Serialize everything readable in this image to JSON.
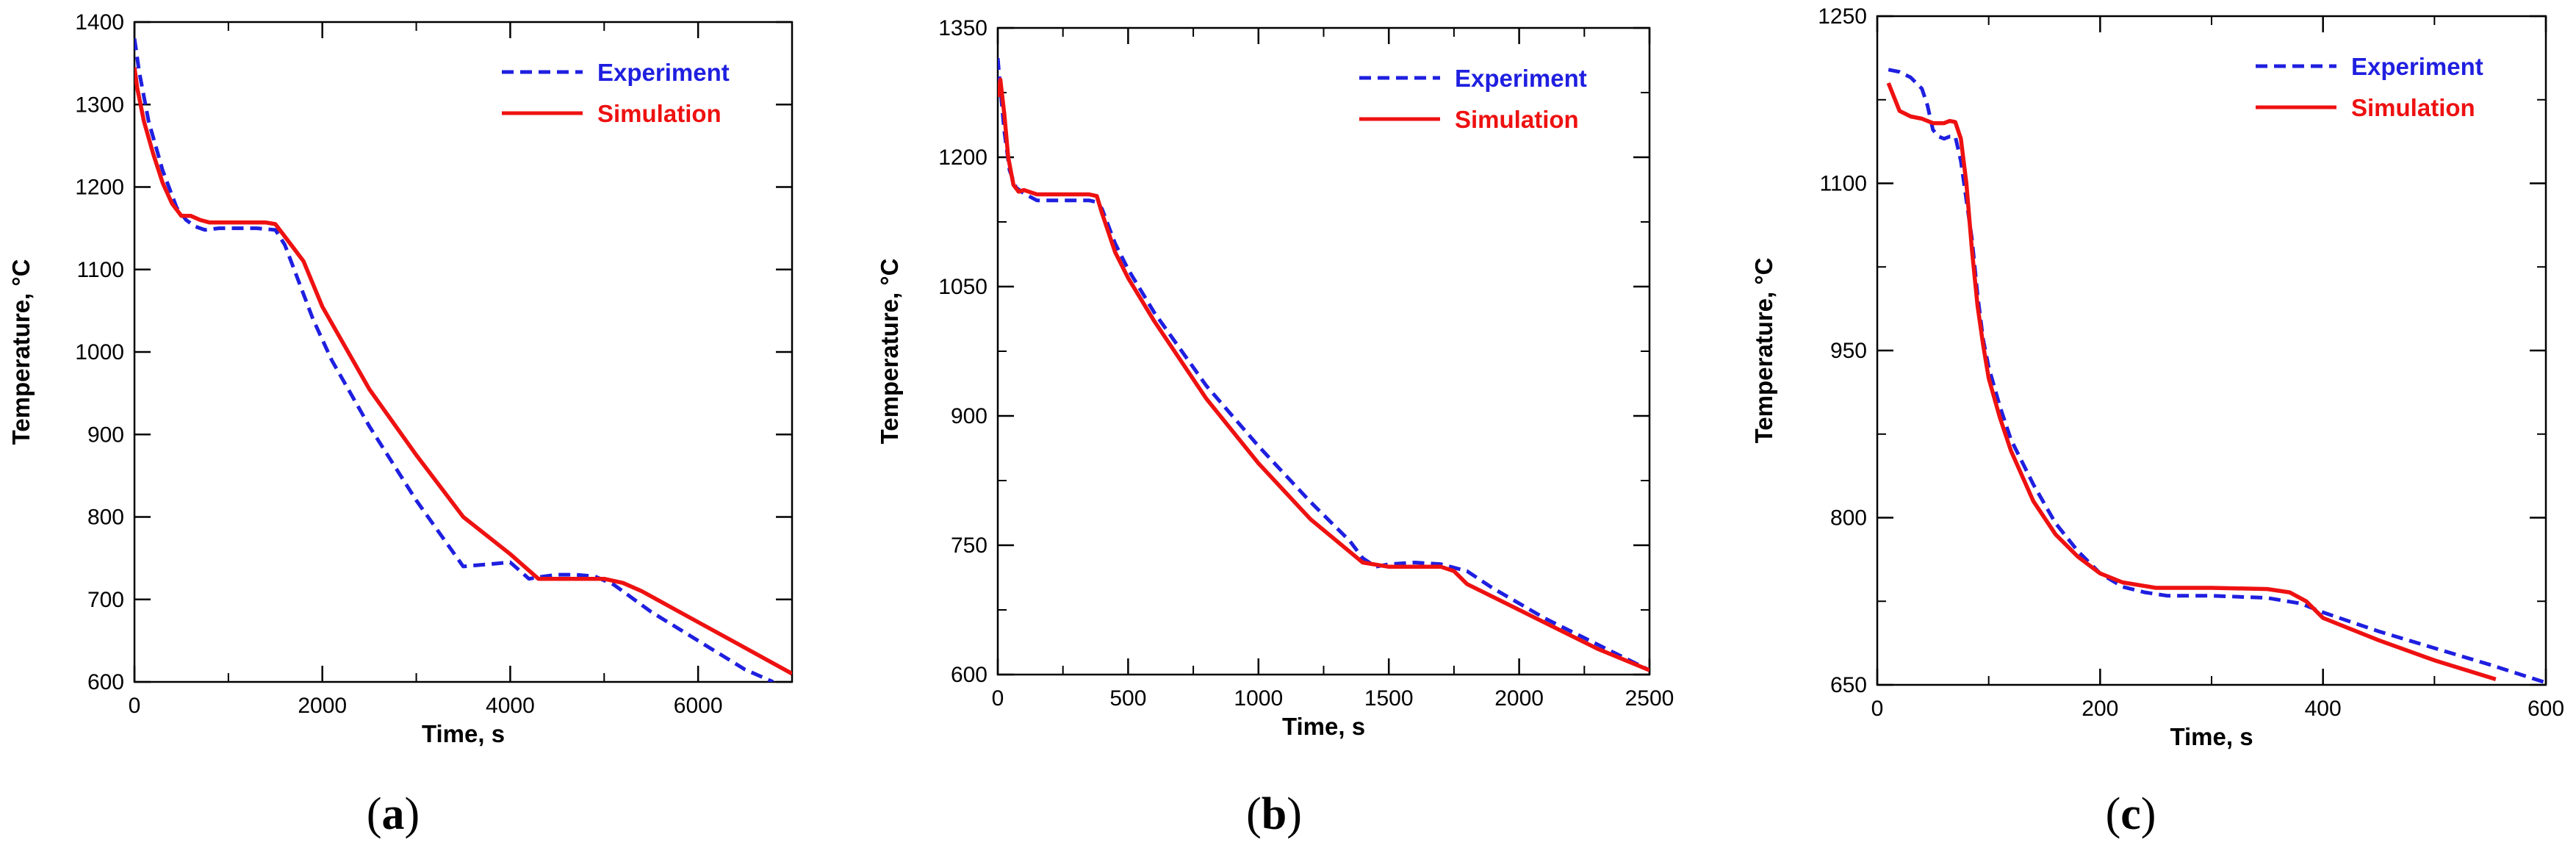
{
  "colors": {
    "experiment": "#1f1fe0",
    "simulation": "#ee1111"
  },
  "chart_data": [
    {
      "type": "line",
      "panel_label": "(a)",
      "panel_letter": "a",
      "xlabel": "Time, s",
      "ylabel": "Temperature, °C",
      "xlim": [
        0,
        7000
      ],
      "ylim": [
        600,
        1400
      ],
      "xticks": [
        0,
        2000,
        4000,
        6000
      ],
      "xtick_labels": [
        "0",
        "2000",
        "4000",
        "6000"
      ],
      "xminor": [
        1000,
        3000,
        5000
      ],
      "yticks": [
        600,
        700,
        800,
        900,
        1000,
        1100,
        1200,
        1300,
        1400
      ],
      "ytick_labels": [
        "600",
        "700",
        "800",
        "900",
        "1000",
        "1100",
        "1200",
        "1300",
        "1400"
      ],
      "yminor": [],
      "legend": {
        "position": "top-right",
        "entries": [
          "Experiment",
          "Simulation"
        ]
      },
      "series": [
        {
          "name": "Experiment",
          "style": "dashed",
          "x": [
            0,
            50,
            150,
            300,
            450,
            550,
            650,
            750,
            900,
            1100,
            1300,
            1500,
            1600,
            1700,
            1900,
            2100,
            2500,
            3000,
            3500,
            4000,
            4200,
            4300,
            4500,
            4700,
            4900,
            5100,
            5500,
            6000,
            6500,
            6800
          ],
          "y": [
            1380,
            1340,
            1280,
            1220,
            1175,
            1160,
            1152,
            1148,
            1150,
            1150,
            1150,
            1148,
            1130,
            1100,
            1040,
            990,
            910,
            820,
            740,
            745,
            725,
            727,
            730,
            730,
            728,
            718,
            685,
            650,
            615,
            600
          ]
        },
        {
          "name": "Simulation",
          "style": "solid",
          "x": [
            0,
            30,
            100,
            200,
            300,
            400,
            500,
            600,
            700,
            800,
            1000,
            1200,
            1400,
            1500,
            1600,
            1700,
            1800,
            2000,
            2500,
            3000,
            3500,
            4000,
            4300,
            4500,
            5000,
            5200,
            5400,
            5800,
            6200,
            6600,
            7000
          ],
          "y": [
            1345,
            1320,
            1280,
            1240,
            1205,
            1180,
            1165,
            1165,
            1160,
            1157,
            1157,
            1157,
            1157,
            1155,
            1140,
            1125,
            1110,
            1055,
            955,
            875,
            800,
            755,
            725,
            725,
            725,
            720,
            710,
            685,
            660,
            635,
            610
          ]
        }
      ]
    },
    {
      "type": "line",
      "panel_label": "(b)",
      "panel_letter": "b",
      "xlabel": "Time, s",
      "ylabel": "Temperature, °C",
      "xlim": [
        0,
        2500
      ],
      "ylim": [
        600,
        1350
      ],
      "xticks": [
        0,
        500,
        1000,
        1500,
        2000,
        2500
      ],
      "xtick_labels": [
        "0",
        "500",
        "1000",
        "1500",
        "2000",
        "2500"
      ],
      "xminor": [
        250,
        750,
        1250,
        1750,
        2250
      ],
      "yticks": [
        600,
        750,
        900,
        1050,
        1200,
        1350
      ],
      "ytick_labels": [
        "600",
        "750",
        "900",
        "1050",
        "1200",
        "1350"
      ],
      "yminor": [
        675,
        825,
        975,
        1125,
        1275
      ],
      "legend": {
        "position": "top-right",
        "entries": [
          "Experiment",
          "Simulation"
        ]
      },
      "series": [
        {
          "name": "Experiment",
          "style": "dashed",
          "x": [
            0,
            10,
            25,
            45,
            70,
            100,
            150,
            200,
            250,
            300,
            350,
            380,
            400,
            450,
            500,
            600,
            800,
            1000,
            1200,
            1350,
            1400,
            1450,
            1500,
            1600,
            1700,
            1800,
            1900,
            2100,
            2300,
            2500
          ],
          "y": [
            1315,
            1280,
            1230,
            1185,
            1165,
            1158,
            1150,
            1150,
            1150,
            1150,
            1150,
            1148,
            1140,
            1100,
            1070,
            1020,
            935,
            865,
            800,
            755,
            735,
            725,
            728,
            730,
            728,
            720,
            700,
            665,
            635,
            605
          ]
        },
        {
          "name": "Simulation",
          "style": "solid",
          "x": [
            0,
            10,
            25,
            40,
            60,
            80,
            100,
            150,
            200,
            300,
            350,
            380,
            400,
            450,
            500,
            600,
            800,
            1000,
            1200,
            1400,
            1500,
            1600,
            1700,
            1750,
            1800,
            1900,
            2100,
            2300,
            2500
          ],
          "y": [
            1270,
            1290,
            1250,
            1200,
            1168,
            1160,
            1162,
            1157,
            1157,
            1157,
            1157,
            1155,
            1135,
            1090,
            1060,
            1010,
            920,
            845,
            780,
            730,
            725,
            725,
            725,
            720,
            705,
            690,
            660,
            630,
            605
          ]
        }
      ]
    },
    {
      "type": "line",
      "panel_label": "(c)",
      "panel_letter": "c",
      "xlabel": "Time, s",
      "ylabel": "Temperature, °C",
      "xlim": [
        0,
        600
      ],
      "ylim": [
        650,
        1250
      ],
      "xticks": [
        0,
        200,
        400,
        600
      ],
      "xtick_labels": [
        "0",
        "200",
        "400",
        "600"
      ],
      "xminor": [
        100,
        300,
        500
      ],
      "yticks": [
        650,
        800,
        950,
        1100,
        1250
      ],
      "ytick_labels": [
        "650",
        "800",
        "950",
        "1100",
        "1250"
      ],
      "yminor": [
        725,
        875,
        1025,
        1175
      ],
      "legend": {
        "position": "top-right",
        "entries": [
          "Experiment",
          "Simulation"
        ]
      },
      "series": [
        {
          "name": "Experiment",
          "style": "dashed",
          "x": [
            10,
            20,
            30,
            40,
            45,
            50,
            55,
            60,
            65,
            70,
            75,
            80,
            85,
            90,
            95,
            100,
            110,
            120,
            140,
            160,
            180,
            200,
            220,
            240,
            260,
            300,
            350,
            380,
            400,
            450,
            500,
            550,
            600
          ],
          "y": [
            1202,
            1200,
            1195,
            1185,
            1170,
            1148,
            1142,
            1140,
            1142,
            1142,
            1120,
            1085,
            1050,
            1000,
            960,
            935,
            900,
            870,
            830,
            795,
            770,
            750,
            738,
            733,
            730,
            730,
            728,
            723,
            715,
            698,
            683,
            668,
            652
          ]
        },
        {
          "name": "Simulation",
          "style": "solid",
          "x": [
            10,
            20,
            30,
            40,
            50,
            60,
            65,
            70,
            75,
            80,
            85,
            90,
            95,
            100,
            110,
            120,
            140,
            160,
            180,
            200,
            220,
            250,
            300,
            350,
            370,
            385,
            400,
            450,
            500,
            555
          ],
          "y": [
            1190,
            1165,
            1160,
            1158,
            1154,
            1154,
            1156,
            1155,
            1140,
            1100,
            1040,
            990,
            955,
            925,
            890,
            860,
            815,
            785,
            765,
            750,
            742,
            737,
            737,
            736,
            733,
            725,
            710,
            690,
            672,
            655
          ]
        }
      ]
    }
  ]
}
